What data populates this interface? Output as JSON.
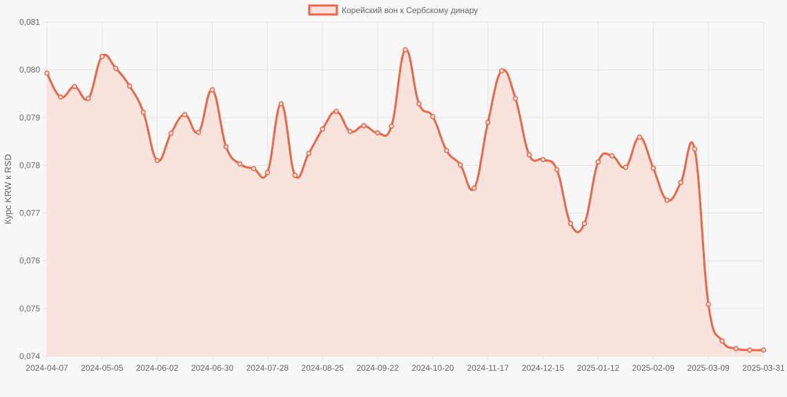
{
  "chart_data": {
    "type": "area",
    "legend": {
      "label": "Корейский вон к Сербскому динару",
      "placement": "top-center"
    },
    "ylabel": "Курс KRW к RSD",
    "xlabel": "",
    "ylim": [
      0.074,
      0.081
    ],
    "y_ticks": [
      "0,074",
      "0,075",
      "0,076",
      "0,077",
      "0,078",
      "0,079",
      "0,080",
      "0,081"
    ],
    "x_ticks": [
      "2024-04-07",
      "2024-05-05",
      "2024-06-02",
      "2024-06-30",
      "2024-07-28",
      "2024-08-25",
      "2024-09-22",
      "2024-10-20",
      "2024-11-17",
      "2024-12-15",
      "2025-01-12",
      "2025-02-09",
      "2025-03-09",
      "2025-03-31"
    ],
    "grid": true,
    "colors": {
      "line": "#ee6446",
      "fill": "#f9e3dd",
      "grid": "#e2e2e2",
      "background": "#f8f8f8"
    },
    "series": [
      {
        "name": "Корейский вон к Сербскому динару",
        "values": [
          0.07993,
          0.07943,
          0.07965,
          0.0794,
          0.08028,
          0.08003,
          0.07966,
          0.07911,
          0.0781,
          0.07867,
          0.07906,
          0.07869,
          0.07958,
          0.07839,
          0.07803,
          0.07793,
          0.07785,
          0.07929,
          0.07779,
          0.07825,
          0.07876,
          0.07913,
          0.07871,
          0.07883,
          0.07868,
          0.07882,
          0.08042,
          0.07929,
          0.07902,
          0.07831,
          0.07801,
          0.07752,
          0.0789,
          0.07998,
          0.0794,
          0.07822,
          0.07812,
          0.07791,
          0.07678,
          0.07678,
          0.07807,
          0.0782,
          0.07796,
          0.07859,
          0.07794,
          0.07727,
          0.07764,
          0.07834,
          0.07509,
          0.07432,
          0.07416,
          0.07413,
          0.07413
        ]
      }
    ]
  }
}
